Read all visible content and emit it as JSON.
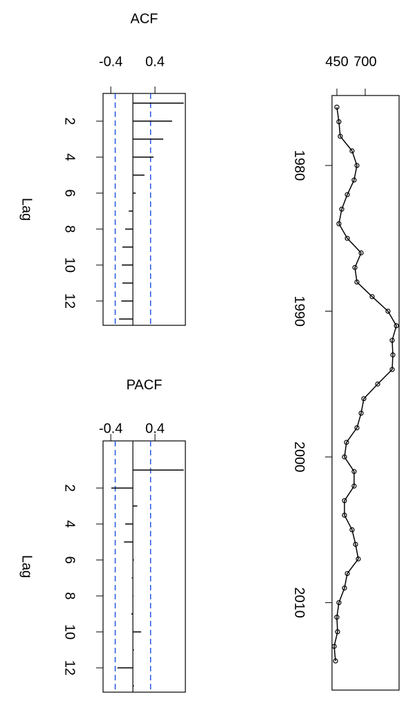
{
  "chart_data": [
    {
      "type": "line",
      "x": [
        1976,
        1977,
        1978,
        1979,
        1980,
        1981,
        1982,
        1983,
        1984,
        1985,
        1986,
        1987,
        1988,
        1989,
        1990,
        1991,
        1992,
        1993,
        1994,
        1995,
        1996,
        1997,
        1998,
        1999,
        2000,
        2001,
        2002,
        2003,
        2004,
        2005,
        2006,
        2007,
        2008,
        2009,
        2010,
        2011,
        2012,
        2013,
        2014
      ],
      "values": [
        450,
        468,
        480,
        584,
        627,
        602,
        542,
        493,
        468,
        542,
        664,
        609,
        627,
        761,
        901,
        975,
        938,
        944,
        938,
        810,
        688,
        664,
        627,
        535,
        517,
        602,
        602,
        517,
        517,
        584,
        615,
        639,
        542,
        517,
        468,
        450,
        456,
        426,
        438
      ],
      "color": "#000000",
      "xlim": [
        1975.2,
        2016.0
      ],
      "xticks": [
        1980,
        1990,
        2000,
        2010
      ],
      "ylim": [
        407,
        999
      ],
      "yticks": [
        450,
        700
      ]
    },
    {
      "type": "bar",
      "title": "ACF",
      "xlabel": "Lag",
      "x": [
        1,
        2,
        3,
        4,
        5,
        6,
        7,
        8,
        9,
        10,
        11,
        12,
        13
      ],
      "values": [
        0.92,
        0.71,
        0.55,
        0.375,
        0.21,
        0.05,
        -0.075,
        -0.14,
        -0.19,
        -0.2,
        -0.19,
        -0.21,
        -0.25
      ],
      "color": "#000000",
      "ci_limit": 0.32,
      "ci_color": "#2255dd",
      "xlim": [
        0.46,
        13.35
      ],
      "xticks": [
        2,
        4,
        6,
        8,
        10,
        12
      ],
      "ylim": [
        -0.54,
        0.95
      ],
      "yticks": [
        -0.4,
        0.4
      ]
    },
    {
      "type": "bar",
      "title": "PACF",
      "xlabel": "Lag",
      "x": [
        1,
        2,
        3,
        4,
        5,
        6,
        7,
        8,
        9,
        10,
        11,
        12,
        13
      ],
      "values": [
        0.92,
        -0.39,
        0.08,
        -0.14,
        -0.16,
        0.02,
        -0.02,
        0.01,
        -0.03,
        0.15,
        0.02,
        -0.28,
        0.02
      ],
      "color": "#000000",
      "ci_limit": 0.32,
      "ci_color": "#2255dd",
      "xlim": [
        -0.62,
        13.35
      ],
      "xticks": [
        2,
        4,
        6,
        8,
        10,
        12
      ],
      "ylim": [
        -0.54,
        0.95
      ],
      "yticks": [
        -0.4,
        0.4
      ]
    }
  ]
}
